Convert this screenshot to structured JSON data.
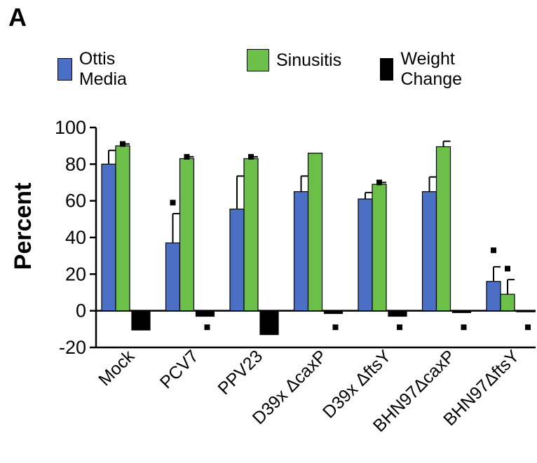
{
  "panel_label": "A",
  "chart_data": {
    "type": "bar",
    "title": "",
    "xlabel": "",
    "ylabel": "Percent",
    "ylim": [
      -20,
      100
    ],
    "yticks": [
      -20,
      0,
      20,
      40,
      60,
      80,
      100
    ],
    "categories": [
      "Mock",
      "PCV7",
      "PPV23",
      "D39x ΔcaxP",
      "D39x ΔftsY",
      "BHN97ΔcaxP",
      "BHN97ΔftsY"
    ],
    "series": [
      {
        "name": "Ottis Media",
        "color": "#4a6fc4",
        "values": [
          80,
          37,
          55.5,
          65,
          61,
          65,
          16
        ],
        "errors": [
          7.5,
          16,
          18,
          8.5,
          3.5,
          8,
          8
        ]
      },
      {
        "name": "Sinusitis",
        "color": "#6cc04a",
        "values": [
          90,
          83,
          83,
          86,
          69,
          89.5,
          9
        ],
        "errors": [
          1,
          1,
          1,
          0,
          1,
          3,
          8
        ]
      },
      {
        "name": "Weight Change",
        "color": "#000000",
        "values": [
          -10.5,
          -3,
          -13,
          -1.5,
          -3,
          -1,
          -0.5
        ],
        "errors": [
          0,
          0,
          0,
          0,
          0,
          0,
          0
        ]
      }
    ],
    "significance_markers": [
      {
        "category": "Mock",
        "series": "Sinusitis",
        "value": 91
      },
      {
        "category": "PCV7",
        "series": "Ottis Media",
        "value": 59
      },
      {
        "category": "PCV7",
        "series": "Sinusitis",
        "value": 84
      },
      {
        "category": "PCV7",
        "series": "Weight Change",
        "value": -9
      },
      {
        "category": "PPV23",
        "series": "Sinusitis",
        "value": 84
      },
      {
        "category": "D39x ΔcaxP",
        "series": "Weight Change",
        "value": -9
      },
      {
        "category": "D39x ΔftsY",
        "series": "Sinusitis",
        "value": 70
      },
      {
        "category": "D39x ΔftsY",
        "series": "Weight Change",
        "value": -9
      },
      {
        "category": "BHN97ΔcaxP",
        "series": "Weight Change",
        "value": -9
      },
      {
        "category": "BHN97ΔftsY",
        "series": "Ottis Media",
        "value": 33
      },
      {
        "category": "BHN97ΔftsY",
        "series": "Sinusitis",
        "value": 23
      },
      {
        "category": "BHN97ΔftsY",
        "series": "Weight Change",
        "value": -9
      }
    ],
    "legend_position": "top",
    "grid": false
  }
}
